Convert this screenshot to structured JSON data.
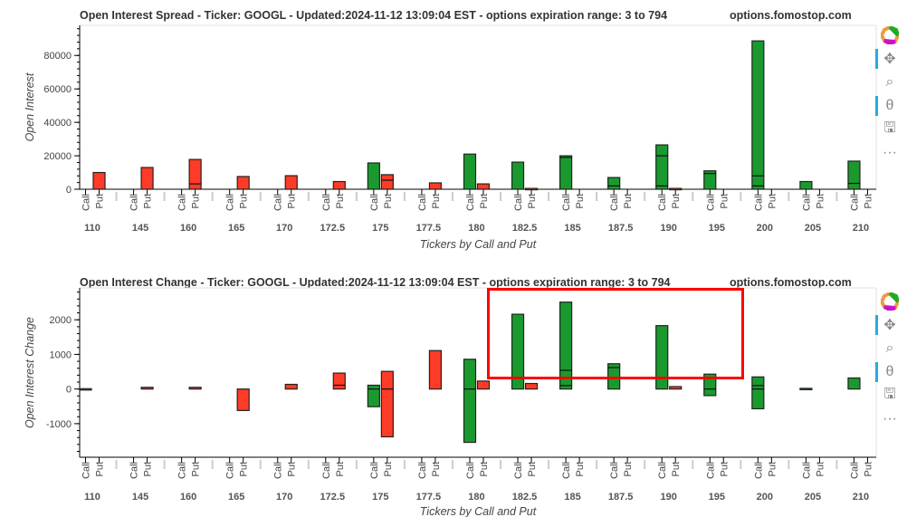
{
  "colors": {
    "call": "#1a9a2e",
    "put": "#fe3b26",
    "highlight": "#ff0000",
    "accent": "#26aae1"
  },
  "toolbar": {
    "tools": [
      "bokeh-logo",
      "pan",
      "box-zoom",
      "wheel-zoom",
      "save",
      "more"
    ],
    "more_label": "···"
  },
  "chart_data": [
    {
      "type": "bar",
      "title": "Open Interest Spread - Ticker: GOOGL - Updated:2024-11-12 13:09:04 EST - options expiration range: 3 to 794",
      "watermark": "options.fomostop.com",
      "xlabel": "Tickers by Call and Put",
      "ylabel": "Open Interest",
      "ylim": [
        0,
        98000
      ],
      "yticks": [
        0,
        20000,
        40000,
        60000,
        80000
      ],
      "ytick_labels": [
        "0",
        "20000",
        "40000",
        "60000",
        "80000"
      ],
      "categories": [
        "110",
        "145",
        "160",
        "165",
        "170",
        "172.5",
        "175",
        "177.5",
        "180",
        "182.5",
        "185",
        "187.5",
        "190",
        "195",
        "200",
        "205",
        "210"
      ],
      "subcategories": [
        "Call",
        "Put"
      ],
      "series": [
        {
          "name": "Call",
          "bars": [
            {
              "lo": 0,
              "hi": 0,
              "marks": []
            },
            {
              "lo": 0,
              "hi": 0,
              "marks": []
            },
            {
              "lo": 0,
              "hi": 0,
              "marks": []
            },
            {
              "lo": 0,
              "hi": 0,
              "marks": []
            },
            {
              "lo": 0,
              "hi": 0,
              "marks": []
            },
            {
              "lo": 0,
              "hi": 0,
              "marks": []
            },
            {
              "lo": 0,
              "hi": 15700,
              "marks": []
            },
            {
              "lo": 0,
              "hi": 0,
              "marks": []
            },
            {
              "lo": 0,
              "hi": 21000,
              "marks": []
            },
            {
              "lo": 0,
              "hi": 16200,
              "marks": []
            },
            {
              "lo": 0,
              "hi": 20000,
              "marks": [
                19000
              ]
            },
            {
              "lo": 0,
              "hi": 7000,
              "marks": [
                2000
              ]
            },
            {
              "lo": 0,
              "hi": 26500,
              "marks": [
                20000,
                2000
              ]
            },
            {
              "lo": 0,
              "hi": 11000,
              "marks": [
                9400
              ]
            },
            {
              "lo": 0,
              "hi": 88700,
              "marks": [
                8000,
                2000
              ]
            },
            {
              "lo": 0,
              "hi": 4600,
              "marks": []
            },
            {
              "lo": 0,
              "hi": 16800,
              "marks": [
                3500
              ]
            }
          ]
        },
        {
          "name": "Put",
          "bars": [
            {
              "lo": 0,
              "hi": 10000,
              "marks": []
            },
            {
              "lo": 0,
              "hi": 13000,
              "marks": []
            },
            {
              "lo": 0,
              "hi": 17800,
              "marks": [
                3200
              ]
            },
            {
              "lo": 0,
              "hi": 7600,
              "marks": []
            },
            {
              "lo": 0,
              "hi": 8100,
              "marks": []
            },
            {
              "lo": 0,
              "hi": 4600,
              "marks": []
            },
            {
              "lo": 0,
              "hi": 8700,
              "marks": [
                5400
              ]
            },
            {
              "lo": 0,
              "hi": 3800,
              "marks": []
            },
            {
              "lo": 0,
              "hi": 3200,
              "marks": []
            },
            {
              "lo": 0,
              "hi": 500,
              "marks": []
            },
            {
              "lo": 0,
              "hi": 0,
              "marks": []
            },
            {
              "lo": 0,
              "hi": 0,
              "marks": []
            },
            {
              "lo": 0,
              "hi": 500,
              "marks": []
            },
            {
              "lo": 0,
              "hi": 0,
              "marks": []
            },
            {
              "lo": 0,
              "hi": 0,
              "marks": []
            },
            {
              "lo": 0,
              "hi": 0,
              "marks": []
            },
            {
              "lo": 0,
              "hi": 0,
              "marks": []
            }
          ]
        }
      ]
    },
    {
      "type": "bar",
      "title": "Open Interest Change - Ticker: GOOGL - Updated:2024-11-12 13:09:04 EST - options expiration range: 3 to 794",
      "watermark": "options.fomostop.com",
      "xlabel": "Tickers by Call and Put",
      "ylabel": "Open Interest Change",
      "ylim": [
        -1970,
        2920
      ],
      "yticks": [
        -1000,
        0,
        1000,
        2000
      ],
      "ytick_labels": [
        "-1000",
        "0",
        "1000",
        "2000"
      ],
      "categories": [
        "110",
        "145",
        "160",
        "165",
        "170",
        "172.5",
        "175",
        "177.5",
        "180",
        "182.5",
        "185",
        "187.5",
        "190",
        "195",
        "200",
        "205",
        "210"
      ],
      "subcategories": [
        "Call",
        "Put"
      ],
      "series": [
        {
          "name": "Call",
          "bars": [
            {
              "lo": -10,
              "hi": 10,
              "marks": []
            },
            {
              "lo": 0,
              "hi": 0,
              "marks": []
            },
            {
              "lo": 0,
              "hi": 0,
              "marks": []
            },
            {
              "lo": 0,
              "hi": 0,
              "marks": []
            },
            {
              "lo": 0,
              "hi": 0,
              "marks": []
            },
            {
              "lo": 0,
              "hi": 0,
              "marks": []
            },
            {
              "lo": -510,
              "hi": 110,
              "marks": [
                0
              ]
            },
            {
              "lo": 0,
              "hi": 0,
              "marks": []
            },
            {
              "lo": -1540,
              "hi": 860,
              "marks": [
                0
              ]
            },
            {
              "lo": 0,
              "hi": 2160,
              "marks": []
            },
            {
              "lo": 0,
              "hi": 2510,
              "marks": [
                540,
                100
              ]
            },
            {
              "lo": 0,
              "hi": 730,
              "marks": [
                620
              ]
            },
            {
              "lo": 0,
              "hi": 1830,
              "marks": []
            },
            {
              "lo": -190,
              "hi": 430,
              "marks": [
                0
              ]
            },
            {
              "lo": -570,
              "hi": 350,
              "marks": [
                0,
                100
              ]
            },
            {
              "lo": 0,
              "hi": 20,
              "marks": []
            },
            {
              "lo": 0,
              "hi": 320,
              "marks": []
            }
          ]
        },
        {
          "name": "Put",
          "bars": [
            {
              "lo": 0,
              "hi": 0,
              "marks": []
            },
            {
              "lo": 0,
              "hi": 50,
              "marks": []
            },
            {
              "lo": 0,
              "hi": 50,
              "marks": []
            },
            {
              "lo": -620,
              "hi": 0,
              "marks": []
            },
            {
              "lo": 0,
              "hi": 135,
              "marks": []
            },
            {
              "lo": 0,
              "hi": 460,
              "marks": [
                110
              ]
            },
            {
              "lo": -1380,
              "hi": 510,
              "marks": [
                0
              ]
            },
            {
              "lo": 0,
              "hi": 1110,
              "marks": []
            },
            {
              "lo": 0,
              "hi": 230,
              "marks": []
            },
            {
              "lo": 0,
              "hi": 160,
              "marks": []
            },
            {
              "lo": 0,
              "hi": 0,
              "marks": []
            },
            {
              "lo": 0,
              "hi": 0,
              "marks": []
            },
            {
              "lo": 0,
              "hi": 70,
              "marks": []
            },
            {
              "lo": 0,
              "hi": 0,
              "marks": []
            },
            {
              "lo": 0,
              "hi": 0,
              "marks": []
            },
            {
              "lo": 0,
              "hi": 0,
              "marks": []
            },
            {
              "lo": 0,
              "hi": 0,
              "marks": []
            }
          ]
        }
      ]
    }
  ]
}
